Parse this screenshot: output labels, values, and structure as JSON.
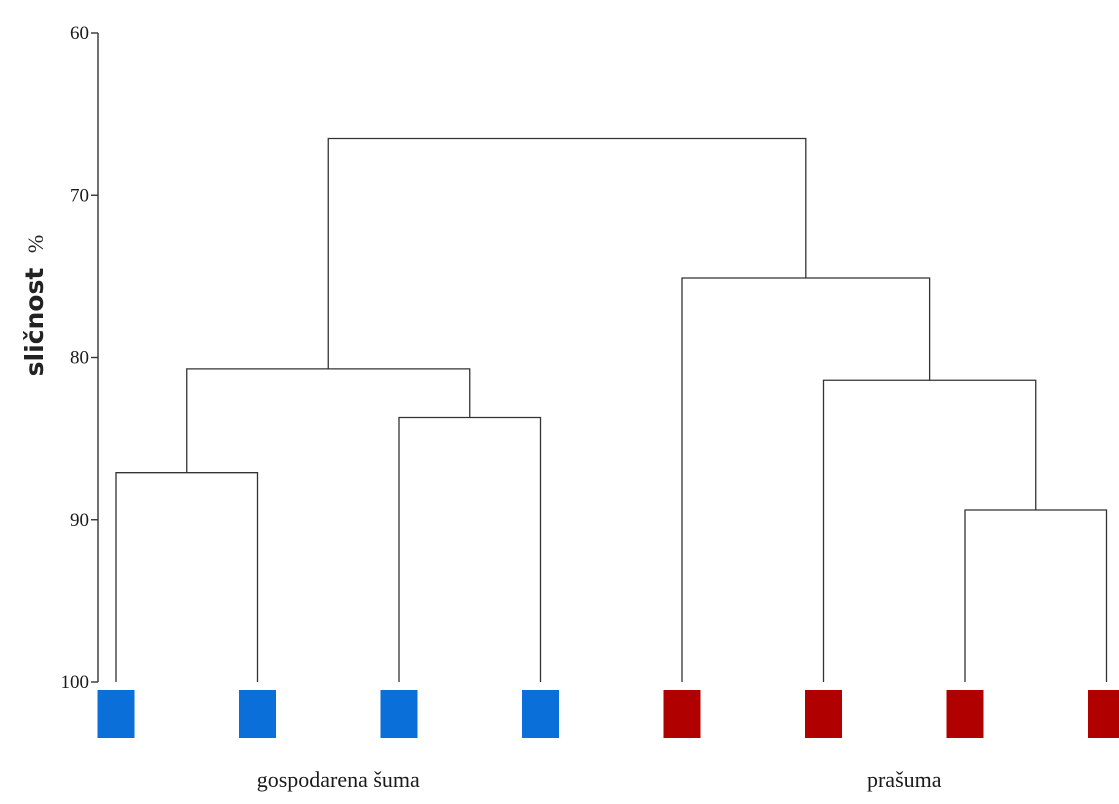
{
  "chart_data": {
    "type": "dendrogram",
    "ylabel": "sličnost",
    "ylabel_unit": "%",
    "yticks": [
      60,
      70,
      80,
      90,
      100
    ],
    "ylim": [
      60,
      100
    ],
    "y_inverted": true,
    "leaves": [
      {
        "group": 0,
        "color": "#0a6fd8"
      },
      {
        "group": 0,
        "color": "#0a6fd8"
      },
      {
        "group": 0,
        "color": "#0a6fd8"
      },
      {
        "group": 0,
        "color": "#0a6fd8"
      },
      {
        "group": 1,
        "color": "#b00000"
      },
      {
        "group": 1,
        "color": "#b00000"
      },
      {
        "group": 1,
        "color": "#b00000"
      },
      {
        "group": 1,
        "color": "#b00000"
      }
    ],
    "merges": [
      {
        "id": "A",
        "left": 0,
        "right": 1,
        "similarity": 87.1
      },
      {
        "id": "B",
        "left": 2,
        "right": 3,
        "similarity": 83.7
      },
      {
        "id": "C",
        "left": "A",
        "right": "B",
        "similarity": 80.7
      },
      {
        "id": "D",
        "left": 6,
        "right": 7,
        "similarity": 89.4
      },
      {
        "id": "E",
        "left": 5,
        "right": "D",
        "similarity": 81.4
      },
      {
        "id": "F",
        "left": 4,
        "right": "E",
        "similarity": 75.1
      },
      {
        "id": "G",
        "left": "C",
        "right": "F",
        "similarity": 66.5
      }
    ],
    "groups": [
      {
        "label": "gospodarena šuma",
        "color": "#0a6fd8"
      },
      {
        "label": "prašuma",
        "color": "#b00000"
      }
    ]
  }
}
